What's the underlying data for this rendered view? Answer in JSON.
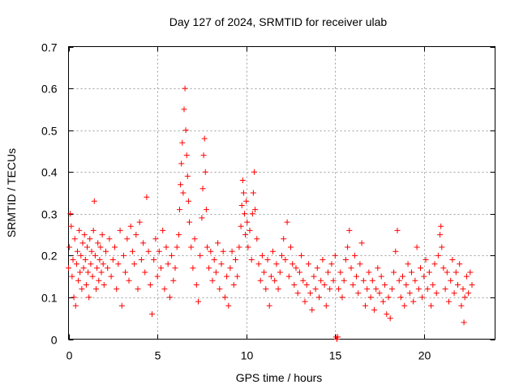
{
  "chart_data": {
    "type": "scatter",
    "title": "Day 127 of 2024, SRMTID for receiver ulab",
    "xlabel": "GPS time / hours",
    "ylabel": "SRMTID / TECUs",
    "xlim": [
      0,
      24
    ],
    "ylim": [
      0,
      0.7
    ],
    "xticks": [
      0,
      5,
      10,
      15,
      20
    ],
    "xtick_labels": [
      "0",
      "5",
      "10",
      "15",
      "20"
    ],
    "yticks": [
      0,
      0.1,
      0.2,
      0.3,
      0.4,
      0.5,
      0.6,
      0.7
    ],
    "ytick_labels": [
      "0",
      "0.1",
      "0.2",
      "0.3",
      "0.4",
      "0.5",
      "0.6",
      "0.7"
    ],
    "grid": true,
    "marker": "+",
    "color": "#ff0000",
    "series": [
      {
        "name": "SRMTID",
        "points": [
          [
            0.0,
            0.17
          ],
          [
            0.05,
            0.22
          ],
          [
            0.1,
            0.3
          ],
          [
            0.15,
            0.27
          ],
          [
            0.2,
            0.15
          ],
          [
            0.25,
            0.19
          ],
          [
            0.3,
            0.1
          ],
          [
            0.35,
            0.24
          ],
          [
            0.4,
            0.08
          ],
          [
            0.45,
            0.18
          ],
          [
            0.5,
            0.21
          ],
          [
            0.55,
            0.14
          ],
          [
            0.6,
            0.26
          ],
          [
            0.65,
            0.16
          ],
          [
            0.7,
            0.2
          ],
          [
            0.75,
            0.12
          ],
          [
            0.8,
            0.23
          ],
          [
            0.85,
            0.17
          ],
          [
            0.9,
            0.25
          ],
          [
            0.95,
            0.19
          ],
          [
            1.0,
            0.13
          ],
          [
            1.05,
            0.22
          ],
          [
            1.1,
            0.16
          ],
          [
            1.15,
            0.1
          ],
          [
            1.2,
            0.24
          ],
          [
            1.25,
            0.18
          ],
          [
            1.3,
            0.21
          ],
          [
            1.35,
            0.15
          ],
          [
            1.4,
            0.26
          ],
          [
            1.45,
            0.33
          ],
          [
            1.5,
            0.2
          ],
          [
            1.55,
            0.12
          ],
          [
            1.6,
            0.17
          ],
          [
            1.65,
            0.23
          ],
          [
            1.7,
            0.14
          ],
          [
            1.75,
            0.19
          ],
          [
            1.8,
            0.22
          ],
          [
            1.85,
            0.16
          ],
          [
            1.9,
            0.25
          ],
          [
            1.95,
            0.18
          ],
          [
            2.0,
            0.13
          ],
          [
            2.1,
            0.21
          ],
          [
            2.2,
            0.17
          ],
          [
            2.3,
            0.24
          ],
          [
            2.4,
            0.15
          ],
          [
            2.5,
            0.19
          ],
          [
            2.6,
            0.22
          ],
          [
            2.7,
            0.12
          ],
          [
            2.8,
            0.18
          ],
          [
            2.9,
            0.26
          ],
          [
            3.0,
            0.08
          ],
          [
            3.1,
            0.2
          ],
          [
            3.2,
            0.16
          ],
          [
            3.3,
            0.24
          ],
          [
            3.4,
            0.14
          ],
          [
            3.5,
            0.27
          ],
          [
            3.6,
            0.21
          ],
          [
            3.7,
            0.18
          ],
          [
            3.8,
            0.25
          ],
          [
            3.9,
            0.12
          ],
          [
            4.0,
            0.28
          ],
          [
            4.1,
            0.19
          ],
          [
            4.2,
            0.23
          ],
          [
            4.3,
            0.16
          ],
          [
            4.4,
            0.34
          ],
          [
            4.5,
            0.21
          ],
          [
            4.6,
            0.13
          ],
          [
            4.7,
            0.06
          ],
          [
            4.8,
            0.19
          ],
          [
            4.9,
            0.24
          ],
          [
            5.0,
            0.15
          ],
          [
            5.1,
            0.21
          ],
          [
            5.2,
            0.17
          ],
          [
            5.3,
            0.26
          ],
          [
            5.4,
            0.12
          ],
          [
            5.5,
            0.22
          ],
          [
            5.6,
            0.18
          ],
          [
            5.7,
            0.1
          ],
          [
            5.8,
            0.2
          ],
          [
            5.9,
            0.14
          ],
          [
            6.0,
            0.17
          ],
          [
            6.1,
            0.22
          ],
          [
            6.2,
            0.25
          ],
          [
            6.25,
            0.31
          ],
          [
            6.3,
            0.37
          ],
          [
            6.35,
            0.42
          ],
          [
            6.4,
            0.47
          ],
          [
            6.45,
            0.35
          ],
          [
            6.5,
            0.55
          ],
          [
            6.55,
            0.6
          ],
          [
            6.6,
            0.5
          ],
          [
            6.65,
            0.44
          ],
          [
            6.7,
            0.39
          ],
          [
            6.75,
            0.33
          ],
          [
            6.8,
            0.28
          ],
          [
            6.9,
            0.22
          ],
          [
            7.0,
            0.17
          ],
          [
            7.1,
            0.24
          ],
          [
            7.2,
            0.13
          ],
          [
            7.3,
            0.09
          ],
          [
            7.4,
            0.2
          ],
          [
            7.5,
            0.29
          ],
          [
            7.55,
            0.36
          ],
          [
            7.6,
            0.44
          ],
          [
            7.65,
            0.48
          ],
          [
            7.7,
            0.4
          ],
          [
            7.75,
            0.31
          ],
          [
            7.8,
            0.22
          ],
          [
            7.9,
            0.17
          ],
          [
            8.0,
            0.21
          ],
          [
            8.1,
            0.14
          ],
          [
            8.2,
            0.19
          ],
          [
            8.3,
            0.16
          ],
          [
            8.4,
            0.23
          ],
          [
            8.5,
            0.12
          ],
          [
            8.6,
            0.18
          ],
          [
            8.7,
            0.21
          ],
          [
            8.8,
            0.1
          ],
          [
            8.9,
            0.15
          ],
          [
            9.0,
            0.08
          ],
          [
            9.1,
            0.17
          ],
          [
            9.2,
            0.21
          ],
          [
            9.3,
            0.13
          ],
          [
            9.4,
            0.19
          ],
          [
            9.5,
            0.15
          ],
          [
            9.6,
            0.22
          ],
          [
            9.7,
            0.27
          ],
          [
            9.75,
            0.32
          ],
          [
            9.8,
            0.38
          ],
          [
            9.85,
            0.35
          ],
          [
            9.9,
            0.3
          ],
          [
            9.95,
            0.25
          ],
          [
            10.0,
            0.33
          ],
          [
            10.05,
            0.28
          ],
          [
            10.1,
            0.22
          ],
          [
            10.2,
            0.26
          ],
          [
            10.3,
            0.19
          ],
          [
            10.35,
            0.3
          ],
          [
            10.4,
            0.35
          ],
          [
            10.45,
            0.4
          ],
          [
            10.5,
            0.31
          ],
          [
            10.6,
            0.24
          ],
          [
            10.7,
            0.18
          ],
          [
            10.8,
            0.14
          ],
          [
            10.9,
            0.2
          ],
          [
            11.0,
            0.16
          ],
          [
            11.1,
            0.12
          ],
          [
            11.2,
            0.19
          ],
          [
            11.3,
            0.08
          ],
          [
            11.4,
            0.15
          ],
          [
            11.5,
            0.21
          ],
          [
            11.6,
            0.14
          ],
          [
            11.7,
            0.18
          ],
          [
            11.8,
            0.12
          ],
          [
            11.9,
            0.16
          ],
          [
            12.0,
            0.2
          ],
          [
            12.1,
            0.24
          ],
          [
            12.2,
            0.19
          ],
          [
            12.3,
            0.28
          ],
          [
            12.4,
            0.15
          ],
          [
            12.5,
            0.22
          ],
          [
            12.6,
            0.18
          ],
          [
            12.7,
            0.13
          ],
          [
            12.8,
            0.17
          ],
          [
            12.9,
            0.11
          ],
          [
            13.0,
            0.16
          ],
          [
            13.1,
            0.2
          ],
          [
            13.2,
            0.14
          ],
          [
            13.3,
            0.09
          ],
          [
            13.4,
            0.13
          ],
          [
            13.5,
            0.18
          ],
          [
            13.6,
            0.11
          ],
          [
            13.7,
            0.07
          ],
          [
            13.8,
            0.15
          ],
          [
            13.9,
            0.12
          ],
          [
            14.0,
            0.17
          ],
          [
            14.1,
            0.1
          ],
          [
            14.2,
            0.14
          ],
          [
            14.3,
            0.19
          ],
          [
            14.4,
            0.13
          ],
          [
            14.5,
            0.08
          ],
          [
            14.6,
            0.16
          ],
          [
            14.7,
            0.12
          ],
          [
            14.8,
            0.18
          ],
          [
            14.9,
            0.14
          ],
          [
            15.0,
            0.2
          ],
          [
            15.05,
            0.005
          ],
          [
            15.1,
            0.0
          ],
          [
            15.15,
            0.005
          ],
          [
            15.2,
            0.12
          ],
          [
            15.3,
            0.16
          ],
          [
            15.4,
            0.1
          ],
          [
            15.5,
            0.14
          ],
          [
            15.6,
            0.19
          ],
          [
            15.7,
            0.22
          ],
          [
            15.8,
            0.26
          ],
          [
            15.9,
            0.17
          ],
          [
            16.0,
            0.13
          ],
          [
            16.1,
            0.2
          ],
          [
            16.2,
            0.15
          ],
          [
            16.3,
            0.11
          ],
          [
            16.4,
            0.18
          ],
          [
            16.5,
            0.23
          ],
          [
            16.6,
            0.14
          ],
          [
            16.7,
            0.08
          ],
          [
            16.8,
            0.12
          ],
          [
            16.9,
            0.16
          ],
          [
            17.0,
            0.1
          ],
          [
            17.1,
            0.14
          ],
          [
            17.2,
            0.07
          ],
          [
            17.3,
            0.12
          ],
          [
            17.4,
            0.17
          ],
          [
            17.5,
            0.11
          ],
          [
            17.6,
            0.15
          ],
          [
            17.7,
            0.09
          ],
          [
            17.8,
            0.13
          ],
          [
            17.9,
            0.06
          ],
          [
            18.0,
            0.1
          ],
          [
            18.1,
            0.05
          ],
          [
            18.2,
            0.12
          ],
          [
            18.3,
            0.16
          ],
          [
            18.4,
            0.21
          ],
          [
            18.5,
            0.26
          ],
          [
            18.6,
            0.14
          ],
          [
            18.7,
            0.1
          ],
          [
            18.8,
            0.15
          ],
          [
            18.9,
            0.08
          ],
          [
            19.0,
            0.13
          ],
          [
            19.1,
            0.18
          ],
          [
            19.2,
            0.11
          ],
          [
            19.3,
            0.16
          ],
          [
            19.4,
            0.09
          ],
          [
            19.5,
            0.14
          ],
          [
            19.6,
            0.22
          ],
          [
            19.7,
            0.12
          ],
          [
            19.8,
            0.17
          ],
          [
            19.9,
            0.1
          ],
          [
            20.0,
            0.15
          ],
          [
            20.1,
            0.19
          ],
          [
            20.2,
            0.12
          ],
          [
            20.3,
            0.16
          ],
          [
            20.4,
            0.08
          ],
          [
            20.5,
            0.13
          ],
          [
            20.6,
            0.18
          ],
          [
            20.7,
            0.11
          ],
          [
            20.8,
            0.2
          ],
          [
            20.9,
            0.25
          ],
          [
            20.95,
            0.27
          ],
          [
            21.0,
            0.22
          ],
          [
            21.1,
            0.17
          ],
          [
            21.2,
            0.12
          ],
          [
            21.3,
            0.16
          ],
          [
            21.4,
            0.09
          ],
          [
            21.5,
            0.14
          ],
          [
            21.6,
            0.19
          ],
          [
            21.7,
            0.11
          ],
          [
            21.8,
            0.16
          ],
          [
            21.9,
            0.13
          ],
          [
            22.0,
            0.18
          ],
          [
            22.1,
            0.08
          ],
          [
            22.2,
            0.12
          ],
          [
            22.25,
            0.04
          ],
          [
            22.3,
            0.1
          ],
          [
            22.4,
            0.15
          ],
          [
            22.5,
            0.11
          ],
          [
            22.6,
            0.16
          ],
          [
            22.7,
            0.13
          ]
        ]
      }
    ]
  }
}
